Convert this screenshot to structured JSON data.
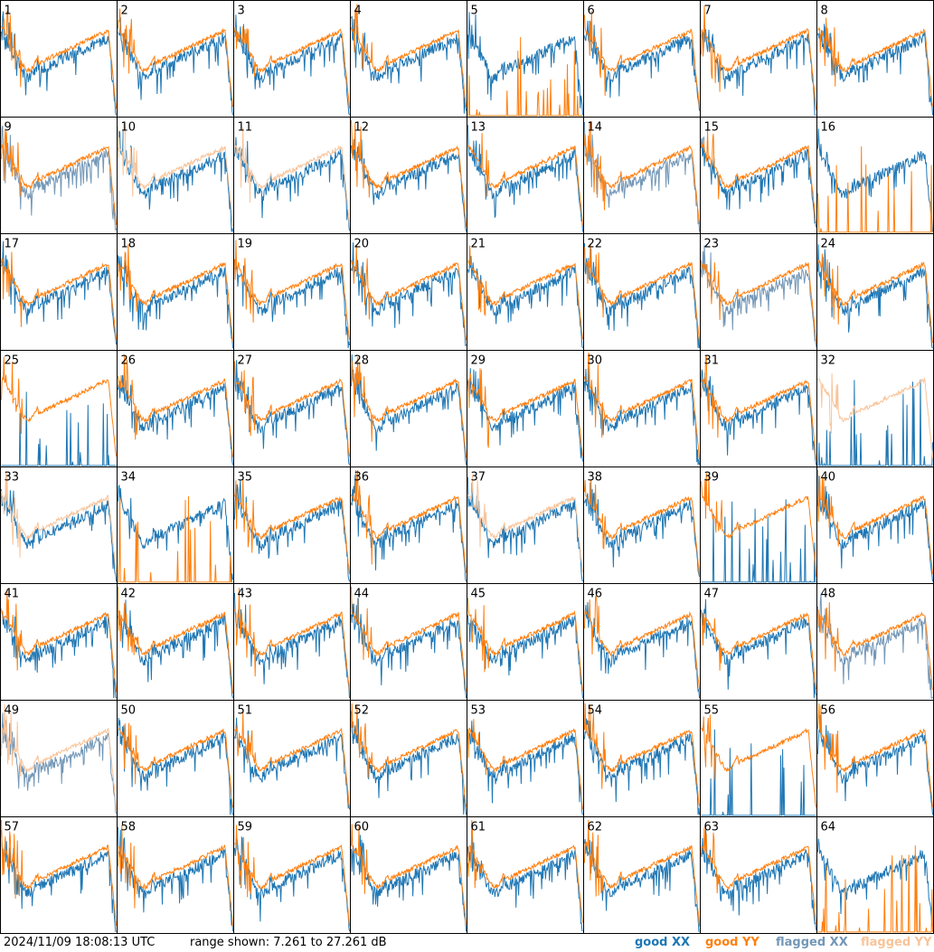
{
  "footer": {
    "timestamp": "2024/11/09 18:08:13 UTC",
    "range": "range shown: 7.261 to 27.261 dB"
  },
  "legend": {
    "good_xx": "good XX",
    "good_yy": "good YY",
    "flagged_xx": "flagged XX",
    "flagged_yy": "flagged YY"
  },
  "colors": {
    "good_xx": "#1f77b4",
    "good_yy": "#ff7f0e",
    "flagged_xx": "#7397b7",
    "flagged_yy": "#f8c49a",
    "border": "#000000"
  },
  "chart_data": {
    "type": "line",
    "panels": 64,
    "columns": 8,
    "rows": 8,
    "ylim": [
      7.261,
      27.261
    ],
    "yunit": "dB",
    "grid": false,
    "legend_placement": "bottom-right",
    "panel_labels": [
      "1",
      "2",
      "3",
      "4",
      "5",
      "6",
      "7",
      "8",
      "9",
      "10",
      "11",
      "12",
      "13",
      "14",
      "15",
      "16",
      "17",
      "18",
      "19",
      "20",
      "21",
      "22",
      "23",
      "24",
      "25",
      "26",
      "27",
      "28",
      "29",
      "30",
      "31",
      "32",
      "33",
      "34",
      "35",
      "36",
      "37",
      "38",
      "39",
      "40",
      "41",
      "42",
      "43",
      "44",
      "45",
      "46",
      "47",
      "48",
      "49",
      "50",
      "51",
      "52",
      "53",
      "54",
      "55",
      "56",
      "57",
      "58",
      "59",
      "60",
      "61",
      "62",
      "63",
      "64"
    ],
    "series_state": [
      [
        "good",
        "good"
      ],
      [
        "good",
        "good"
      ],
      [
        "good",
        "good"
      ],
      [
        "good",
        "good"
      ],
      [
        "good",
        "spiky"
      ],
      [
        "good",
        "good"
      ],
      [
        "good",
        "good"
      ],
      [
        "good",
        "good"
      ],
      [
        "flagged",
        "good"
      ],
      [
        "good",
        "flagged"
      ],
      [
        "good",
        "flagged"
      ],
      [
        "good",
        "good"
      ],
      [
        "good",
        "good"
      ],
      [
        "flagged",
        "good"
      ],
      [
        "good",
        "good"
      ],
      [
        "good",
        "spiky"
      ],
      [
        "good",
        "good"
      ],
      [
        "good",
        "good"
      ],
      [
        "good",
        "good"
      ],
      [
        "good",
        "good"
      ],
      [
        "good",
        "good"
      ],
      [
        "good",
        "good"
      ],
      [
        "flagged",
        "good"
      ],
      [
        "good",
        "good"
      ],
      [
        "spiky",
        "good"
      ],
      [
        "good",
        "good"
      ],
      [
        "good",
        "good"
      ],
      [
        "good",
        "good"
      ],
      [
        "good",
        "good"
      ],
      [
        "good",
        "good"
      ],
      [
        "good",
        "good"
      ],
      [
        "spiky",
        "flagged"
      ],
      [
        "good",
        "flagged"
      ],
      [
        "good",
        "spiky"
      ],
      [
        "good",
        "good"
      ],
      [
        "good",
        "good"
      ],
      [
        "good",
        "flagged"
      ],
      [
        "good",
        "good"
      ],
      [
        "spiky",
        "good"
      ],
      [
        "good",
        "good"
      ],
      [
        "good",
        "good"
      ],
      [
        "good",
        "good"
      ],
      [
        "good",
        "good"
      ],
      [
        "good",
        "good"
      ],
      [
        "good",
        "good"
      ],
      [
        "good",
        "good"
      ],
      [
        "good",
        "good"
      ],
      [
        "flagged",
        "good"
      ],
      [
        "flagged",
        "flagged"
      ],
      [
        "good",
        "good"
      ],
      [
        "good",
        "good"
      ],
      [
        "good",
        "good"
      ],
      [
        "good",
        "good"
      ],
      [
        "good",
        "good"
      ],
      [
        "spiky",
        "good"
      ],
      [
        "good",
        "good"
      ],
      [
        "good",
        "good"
      ],
      [
        "good",
        "good"
      ],
      [
        "good",
        "good"
      ],
      [
        "good",
        "good"
      ],
      [
        "good",
        "good"
      ],
      [
        "good",
        "good"
      ],
      [
        "good",
        "good"
      ],
      [
        "good",
        "spiky"
      ]
    ]
  }
}
